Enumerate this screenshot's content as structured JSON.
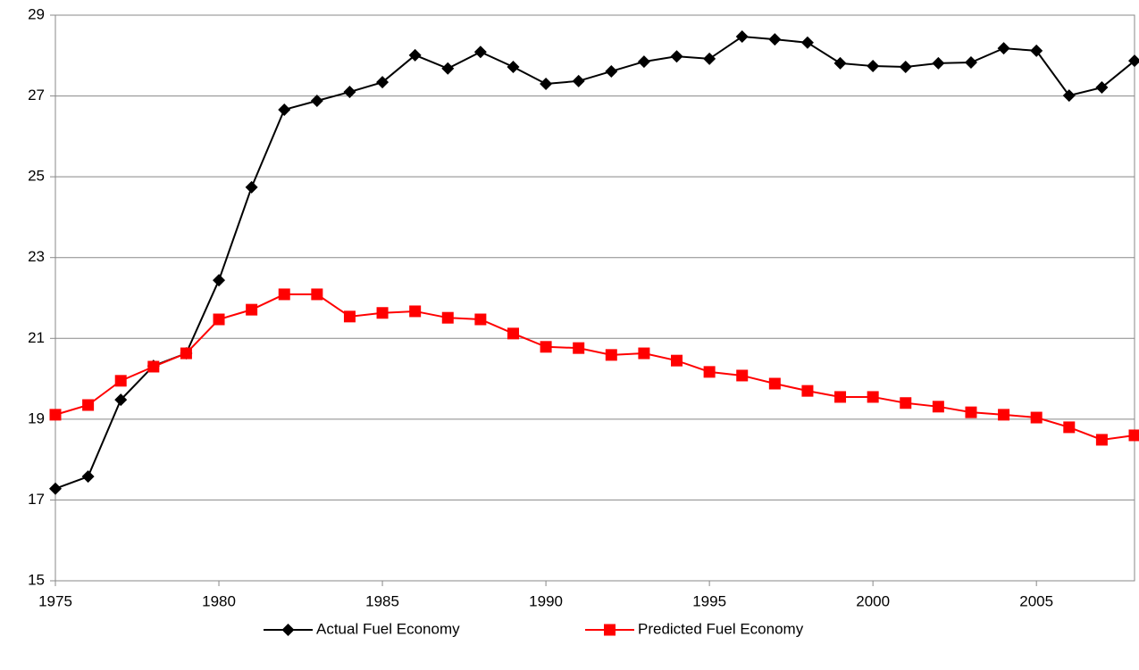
{
  "chart_data": {
    "type": "line",
    "x": [
      1975,
      1976,
      1977,
      1978,
      1979,
      1980,
      1981,
      1982,
      1983,
      1984,
      1985,
      1986,
      1987,
      1988,
      1989,
      1990,
      1991,
      1992,
      1993,
      1994,
      1995,
      1996,
      1997,
      1998,
      1999,
      2000,
      2001,
      2002,
      2003,
      2004,
      2005,
      2006,
      2007,
      2008
    ],
    "series": [
      {
        "name": "Actual Fuel Economy",
        "color": "#000000",
        "marker": "diamond",
        "values": [
          17.28,
          17.58,
          19.48,
          20.32,
          20.63,
          22.44,
          24.74,
          26.66,
          26.88,
          27.1,
          27.34,
          28.01,
          27.68,
          28.09,
          27.72,
          27.3,
          27.37,
          27.61,
          27.85,
          27.98,
          27.92,
          28.47,
          28.4,
          28.32,
          27.81,
          27.74,
          27.72,
          27.81,
          27.83,
          28.18,
          28.12,
          27.01,
          27.21,
          27.87
        ]
      },
      {
        "name": "Predicted Fuel Economy",
        "color": "#ff0000",
        "marker": "square",
        "values": [
          19.11,
          19.35,
          19.95,
          20.3,
          20.63,
          21.47,
          21.71,
          22.09,
          22.09,
          21.54,
          21.63,
          21.67,
          21.51,
          21.47,
          21.12,
          20.79,
          20.76,
          20.59,
          20.63,
          20.45,
          20.17,
          20.08,
          19.88,
          19.7,
          19.55,
          19.55,
          19.4,
          19.31,
          19.17,
          19.11,
          19.04,
          18.8,
          18.49,
          18.6
        ]
      }
    ],
    "xlim": [
      1975,
      2008
    ],
    "xticks": [
      1975,
      1980,
      1985,
      1990,
      1995,
      2000,
      2005
    ],
    "ylim": [
      15,
      29
    ],
    "yticks": [
      15,
      17,
      19,
      21,
      23,
      25,
      27,
      29
    ],
    "grid": true,
    "legend": "bottom"
  }
}
